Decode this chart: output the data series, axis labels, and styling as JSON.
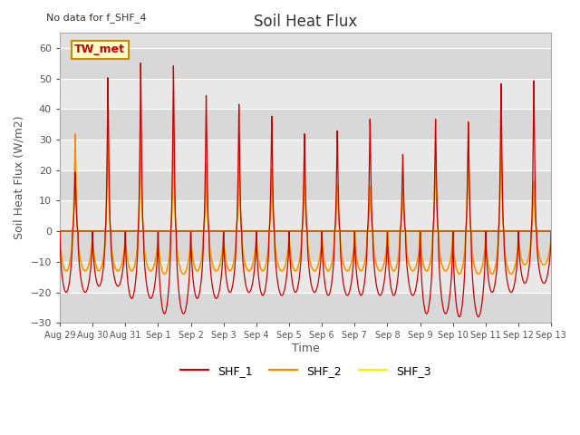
{
  "title": "Soil Heat Flux",
  "top_left_text": "No data for f_SHF_4",
  "ylabel": "Soil Heat Flux (W/m2)",
  "xlabel": "Time",
  "annotation": "TW_met",
  "ylim": [
    -30,
    65
  ],
  "yticks": [
    -30,
    -20,
    -10,
    0,
    10,
    20,
    30,
    40,
    50,
    60
  ],
  "colors": {
    "SHF_1": "#cc0000",
    "SHF_2": "#ff8800",
    "SHF_3": "#ffee00",
    "hline": "#cc6600",
    "background": "#e0e0e0",
    "annotation_bg": "#ffffcc",
    "annotation_border": "#cc8800"
  },
  "x_tick_labels": [
    "Aug 29",
    "Aug 30",
    "Aug 31",
    "Sep 1",
    "Sep 2",
    "Sep 3",
    "Sep 4",
    "Sep 5",
    "Sep 6",
    "Sep 7",
    "Sep 8",
    "Sep 9",
    "Sep 10",
    "Sep 11",
    "Sep 12",
    "Sep 13"
  ],
  "shf1_peaks": [
    20,
    52,
    57,
    56,
    46,
    43,
    39,
    33,
    34,
    38,
    26,
    38,
    37,
    50,
    51
  ],
  "shf1_troughs": [
    -20,
    -18,
    -22,
    -27,
    -22,
    -20,
    -21,
    -20,
    -21,
    -21,
    -21,
    -27,
    -28,
    -20,
    -17
  ],
  "shf2_peaks": [
    33,
    35,
    37,
    35,
    23,
    29,
    21,
    21,
    16,
    15,
    14,
    25,
    33,
    33,
    17
  ],
  "shf2_troughs": [
    -13,
    -13,
    -13,
    -14,
    -13,
    -13,
    -13,
    -13,
    -13,
    -13,
    -13,
    -13,
    -14,
    -14,
    -11
  ],
  "shf3_peaks": [
    33,
    35,
    35,
    33,
    22,
    28,
    20,
    20,
    15,
    14,
    13,
    24,
    31,
    31,
    16
  ],
  "shf3_troughs": [
    -13,
    -13,
    -13,
    -14,
    -13,
    -13,
    -13,
    -13,
    -13,
    -13,
    -13,
    -13,
    -14,
    -14,
    -11
  ],
  "legend_entries": [
    "SHF_1",
    "SHF_2",
    "SHF_3"
  ]
}
